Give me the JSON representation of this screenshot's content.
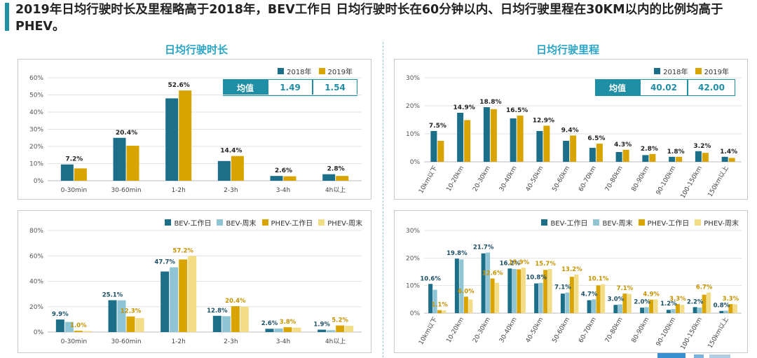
{
  "headline": "2019年日均行驶时长及里程略高于2018年，BEV工作日 日均行驶时长在60分钟以内、日均行驶里程在30KM以内的比例均高于PHEV。",
  "left_title": "日均行驶时长",
  "right_title": "日均行驶里程",
  "colors": {
    "y2018": "#1b6f88",
    "y2019": "#d9a400",
    "bev_work": "#1b6f88",
    "bev_weekend": "#8ec4d4",
    "phev_work": "#d9a400",
    "phev_weekend": "#f2dc86",
    "accent": "#1f8fa6",
    "title": "#2aa4c4"
  },
  "avg_time": {
    "label": "均值",
    "v2018": "1.49",
    "v2019": "1.54"
  },
  "avg_dist": {
    "label": "均值",
    "v2018": "40.02",
    "v2019": "42.00"
  },
  "chart_data": [
    {
      "id": "time_year",
      "type": "bar",
      "categories": [
        "0-30min",
        "30-60min",
        "1-2h",
        "2-3h",
        "3-4h",
        "4h以上"
      ],
      "series": [
        {
          "name": "2018年",
          "values": [
            9.5,
            25.0,
            48.0,
            11.5,
            2.8,
            3.8
          ]
        },
        {
          "name": "2019年",
          "values": [
            7.2,
            20.4,
            52.6,
            14.4,
            2.6,
            2.8
          ]
        }
      ],
      "data_labels": [
        "7.2%",
        "20.4%",
        "52.6%",
        "14.4%",
        "2.6%",
        "2.8%"
      ],
      "label_series": 1,
      "ylim": [
        0,
        60
      ],
      "yticks": [
        "0%",
        "10%",
        "20%",
        "30%",
        "40%",
        "50%",
        "60%"
      ],
      "grid": true,
      "legend": "top-right"
    },
    {
      "id": "dist_year",
      "type": "bar",
      "categories": [
        "10km以下",
        "10-20km",
        "20-30km",
        "30-40km",
        "40-50km",
        "50-60km",
        "60-70km",
        "70-80km",
        "80-90km",
        "90-100km",
        "100-150km",
        "150km以上"
      ],
      "series": [
        {
          "name": "2018年",
          "values": [
            11.0,
            17.5,
            19.5,
            15.5,
            11.0,
            7.5,
            5.0,
            3.5,
            2.4,
            1.8,
            3.8,
            1.8
          ]
        },
        {
          "name": "2019年",
          "values": [
            7.5,
            14.9,
            18.8,
            16.5,
            12.9,
            9.4,
            6.5,
            4.3,
            2.8,
            1.8,
            3.2,
            1.4
          ]
        }
      ],
      "data_labels": [
        "7.5%",
        "14.9%",
        "18.8%",
        "16.5%",
        "12.9%",
        "9.4%",
        "6.5%",
        "4.3%",
        "2.8%",
        "1.8%",
        "3.2%",
        "1.4%"
      ],
      "label_series": 1,
      "ylim": [
        0,
        30
      ],
      "yticks": [
        "0%",
        "10%",
        "20%",
        "30%"
      ],
      "grid": true,
      "legend": "top-right"
    },
    {
      "id": "time_type",
      "type": "bar",
      "categories": [
        "0-30min",
        "30-60min",
        "1-2h",
        "2-3h",
        "3-4h",
        "4h以上"
      ],
      "series": [
        {
          "name": "BEV-工作日",
          "values": [
            9.9,
            25.1,
            47.7,
            12.8,
            2.6,
            1.9
          ]
        },
        {
          "name": "BEV-周末",
          "values": [
            8.0,
            25.0,
            51.0,
            12.5,
            2.8,
            1.5
          ]
        },
        {
          "name": "PHEV-工作日",
          "values": [
            1.0,
            12.3,
            57.2,
            20.4,
            3.8,
            5.2
          ]
        },
        {
          "name": "PHEV-周末",
          "values": [
            0.8,
            11.0,
            60.0,
            20.0,
            3.5,
            5.0
          ]
        }
      ],
      "labels": [
        {
          "series": 0,
          "texts": [
            "9.9%",
            "25.1%",
            "47.7%",
            "12.8%",
            "2.6%",
            "1.9%"
          ]
        },
        {
          "series": 2,
          "texts": [
            "1.0%",
            "12.3%",
            "57.2%",
            "20.4%",
            "3.8%",
            "5.2%"
          ]
        }
      ],
      "ylim": [
        0,
        80
      ],
      "yticks": [
        "0%",
        "20%",
        "40%",
        "60%",
        "80%"
      ],
      "grid": true,
      "legend": "top-right"
    },
    {
      "id": "dist_type",
      "type": "bar",
      "categories": [
        "10km以下",
        "10-20km",
        "20-30km",
        "30-40km",
        "40-50km",
        "50-60km",
        "60-70km",
        "70-80km",
        "80-90km",
        "90-100km",
        "100-150km",
        "150km以上"
      ],
      "series": [
        {
          "name": "BEV-工作日",
          "values": [
            10.6,
            19.8,
            21.7,
            16.2,
            10.8,
            7.1,
            4.7,
            3.0,
            2.0,
            1.2,
            2.2,
            0.8
          ]
        },
        {
          "name": "BEV-周末",
          "values": [
            8.5,
            19.5,
            22.0,
            16.0,
            11.0,
            7.5,
            5.0,
            3.2,
            2.2,
            1.5,
            2.0,
            0.9
          ]
        },
        {
          "name": "PHEV-工作日",
          "values": [
            1.1,
            6.0,
            12.6,
            15.9,
            15.7,
            13.2,
            10.1,
            7.1,
            4.9,
            3.3,
            6.7,
            3.3
          ]
        },
        {
          "name": "PHEV-周末",
          "values": [
            1.0,
            5.0,
            11.0,
            16.5,
            16.0,
            14.0,
            10.5,
            7.0,
            5.0,
            3.0,
            7.5,
            3.2
          ]
        }
      ],
      "labels": [
        {
          "series": 0,
          "texts": [
            "10.6%",
            "19.8%",
            "21.7%",
            "16.2%",
            "10.8%",
            "7.1%",
            "4.7%",
            "3.0%",
            "2.0%",
            "1.2%",
            "2.2%",
            "0.8%"
          ]
        },
        {
          "series": 2,
          "texts": [
            "1.1%",
            "6.0%",
            "12.6%",
            "15.9%",
            "15.7%",
            "13.2%",
            "10.1%",
            "7.1%",
            "4.9%",
            "3.3%",
            "6.7%",
            "3.3%"
          ]
        }
      ],
      "ylim": [
        0,
        30
      ],
      "yticks": [
        "0%",
        "10%",
        "20%",
        "30%"
      ],
      "grid": true,
      "legend": "top-right"
    }
  ]
}
